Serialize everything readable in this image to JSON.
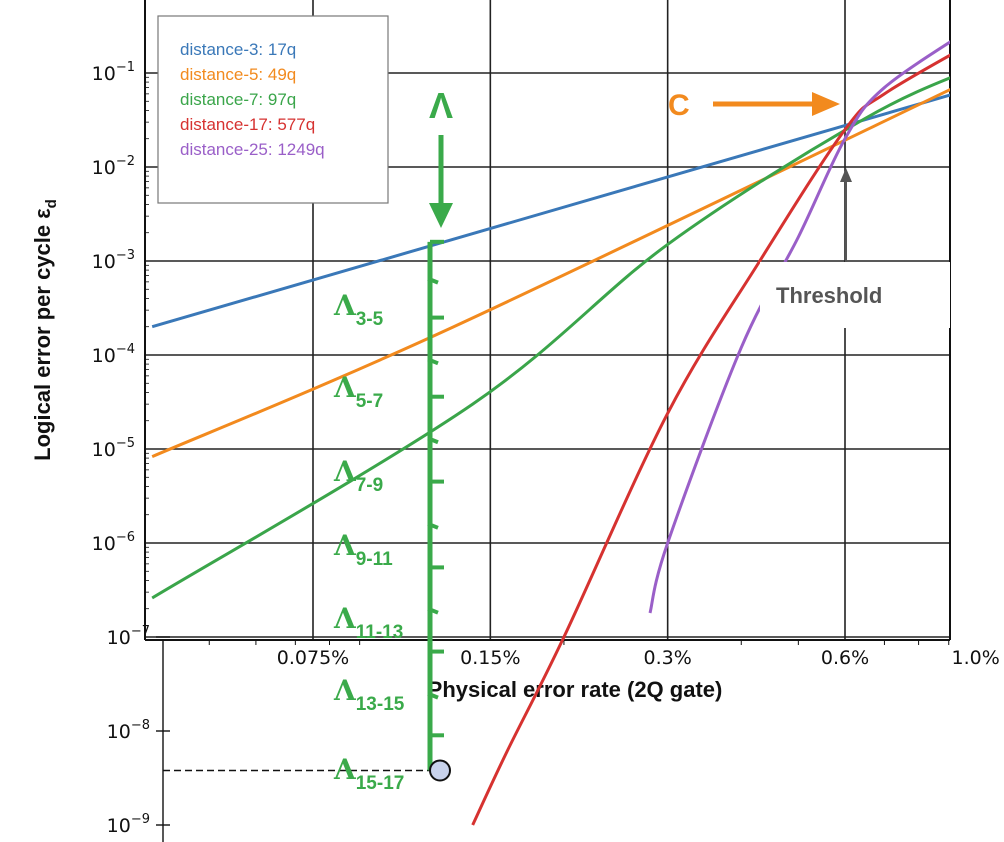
{
  "chart_data": {
    "type": "line",
    "xscale": "log",
    "yscale": "log",
    "xlabel": "Physical error rate (2Q gate)",
    "ylabel": "Logical error per cycle ε",
    "ylabel_subscript": "d",
    "xlim": [
      0.0004,
      0.01
    ],
    "ylim": [
      3e-10,
      0.3
    ],
    "x_ticks": [
      {
        "value": 0.00075,
        "label": "0.075%"
      },
      {
        "value": 0.0015,
        "label": "0.15%"
      },
      {
        "value": 0.003,
        "label": "0.3%"
      },
      {
        "value": 0.006,
        "label": "0.6%"
      },
      {
        "value": 0.01,
        "label": "1.0%"
      }
    ],
    "y_ticks": [
      {
        "value": 0.1,
        "base": "10",
        "exp": "−1"
      },
      {
        "value": 0.01,
        "base": "10",
        "exp": "−2"
      },
      {
        "value": 0.001,
        "base": "10",
        "exp": "−3"
      },
      {
        "value": 0.0001,
        "base": "10",
        "exp": "−4"
      },
      {
        "value": 1e-05,
        "base": "10",
        "exp": "−5"
      },
      {
        "value": 1e-06,
        "base": "10",
        "exp": "−6"
      },
      {
        "value": 1e-07,
        "base": "10",
        "exp": "−7"
      },
      {
        "value": 1e-08,
        "base": "10",
        "exp": "−8"
      },
      {
        "value": 1e-09,
        "base": "10",
        "exp": "−9"
      }
    ],
    "grid": true,
    "legend_position": "top-left",
    "series": [
      {
        "name": "distance-3: 17q",
        "color": "#3a78b8",
        "points": [
          [
            0.0004,
            0.0002
          ],
          [
            0.01,
            0.07
          ]
        ]
      },
      {
        "name": "distance-5: 49q",
        "color": "#f28a1e",
        "points": [
          [
            0.0004,
            8.3e-06
          ],
          [
            0.0013,
            0.0002
          ],
          [
            0.01,
            0.09
          ]
        ]
      },
      {
        "name": "distance-7: 97q",
        "color": "#3aa54a",
        "points": [
          [
            0.0004,
            2.6e-07
          ],
          [
            0.0014,
            3e-05
          ],
          [
            0.003,
            0.0015
          ],
          [
            0.0065,
            0.033
          ],
          [
            0.01,
            0.115
          ]
        ]
      },
      {
        "name": "distance-17: 577q",
        "color": "#d63230",
        "points": [
          [
            0.0014,
            1e-09
          ],
          [
            0.0016,
            6e-09
          ],
          [
            0.002,
            1e-07
          ],
          [
            0.003,
            2.4e-05
          ],
          [
            0.0043,
            0.001
          ],
          [
            0.006,
            0.025
          ],
          [
            0.007,
            0.06
          ],
          [
            0.01,
            0.22
          ]
        ]
      },
      {
        "name": "distance-25: 1249q",
        "color": "#9a5fc8",
        "points": [
          [
            0.0028,
            1.8e-07
          ],
          [
            0.003,
            1e-06
          ],
          [
            0.004,
            0.00012
          ],
          [
            0.005,
            0.0018
          ],
          [
            0.006,
            0.02
          ],
          [
            0.007,
            0.07
          ],
          [
            0.01,
            0.32
          ]
        ]
      }
    ],
    "annotations": {
      "C_label": "C",
      "threshold_label": "Threshold",
      "lambda_top": "Λ",
      "lambda_labels": [
        {
          "main": "Λ",
          "sub": "3-5"
        },
        {
          "main": "Λ",
          "sub": "5-7"
        },
        {
          "main": "Λ",
          "sub": "7-9"
        },
        {
          "main": "Λ",
          "sub": "9-11"
        },
        {
          "main": "Λ",
          "sub": "11-13"
        },
        {
          "main": "Λ",
          "sub": "13-15"
        },
        {
          "main": "Λ",
          "sub": "15-17"
        }
      ],
      "marker_point": [
        0.0014,
        3.8e-09
      ],
      "colors": {
        "orange": "#f28a1e",
        "green": "#3aaa4a",
        "gray": "#555555"
      }
    }
  }
}
